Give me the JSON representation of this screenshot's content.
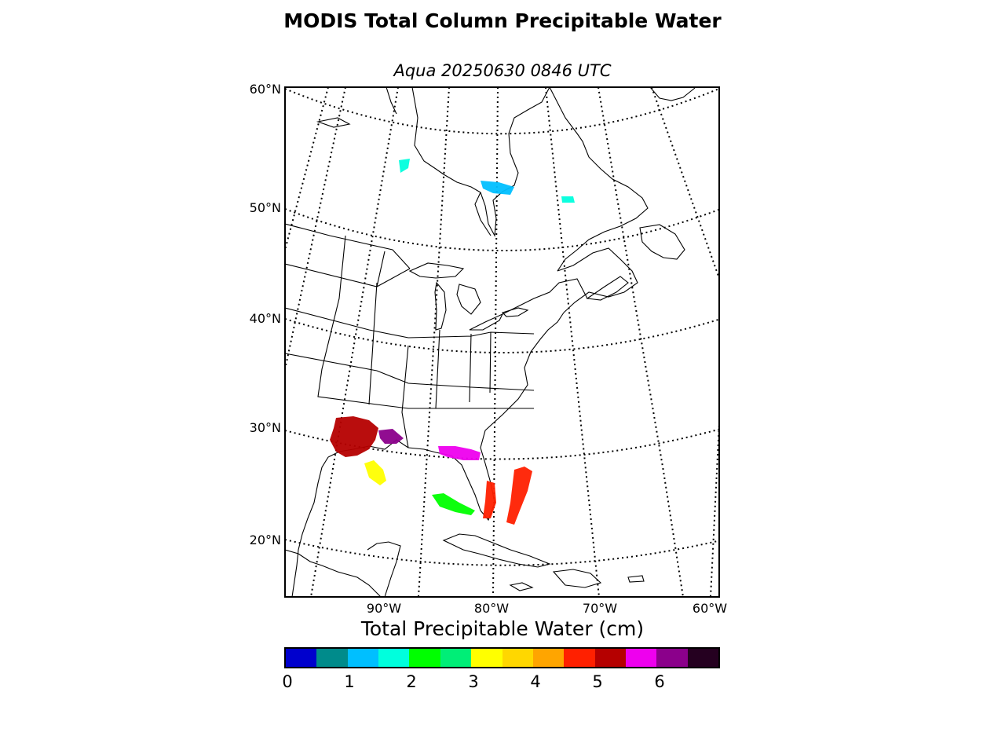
{
  "title": "MODIS Total Column Precipitable Water",
  "subtitle": "Aqua 20250630 0846 UTC",
  "map": {
    "projection": "lambert-conic",
    "lat_labels": [
      "60°N",
      "50°N",
      "40°N",
      "30°N",
      "20°N"
    ],
    "lon_labels": [
      "90°W",
      "80°W",
      "70°W",
      "60°W"
    ],
    "graticule_style": "dotted",
    "coastline_color": "#000000",
    "precip_regions": [
      {
        "region": "Louisiana / East Texas coast",
        "value_cm": 5.0
      },
      {
        "region": "Mississippi coast",
        "value_cm": 6.0
      },
      {
        "region": "Western Gulf",
        "value_cm": 3.2
      },
      {
        "region": "Florida Panhandle",
        "value_cm": 5.5
      },
      {
        "region": "South Florida",
        "value_cm": 4.8
      },
      {
        "region": "Bahamas",
        "value_cm": 4.8
      },
      {
        "region": "Eastern Gulf",
        "value_cm": 2.4
      },
      {
        "region": "Hudson Bay south",
        "value_cm": 1.5
      },
      {
        "region": "James Bay",
        "value_cm": 1.2
      },
      {
        "region": "Quebec",
        "value_cm": 1.8
      }
    ]
  },
  "colorbar": {
    "title": "Total Precipitable Water (cm)",
    "ticks": [
      "0",
      "1",
      "2",
      "3",
      "4",
      "5",
      "6"
    ],
    "range": [
      0,
      7
    ],
    "colors": [
      "#0000cd",
      "#008b8b",
      "#00bfff",
      "#00ffdd",
      "#00ff00",
      "#00ee77",
      "#ffff00",
      "#ffd700",
      "#ffa500",
      "#ff2000",
      "#b50000",
      "#ee00ee",
      "#8b008b",
      "#250020"
    ]
  }
}
